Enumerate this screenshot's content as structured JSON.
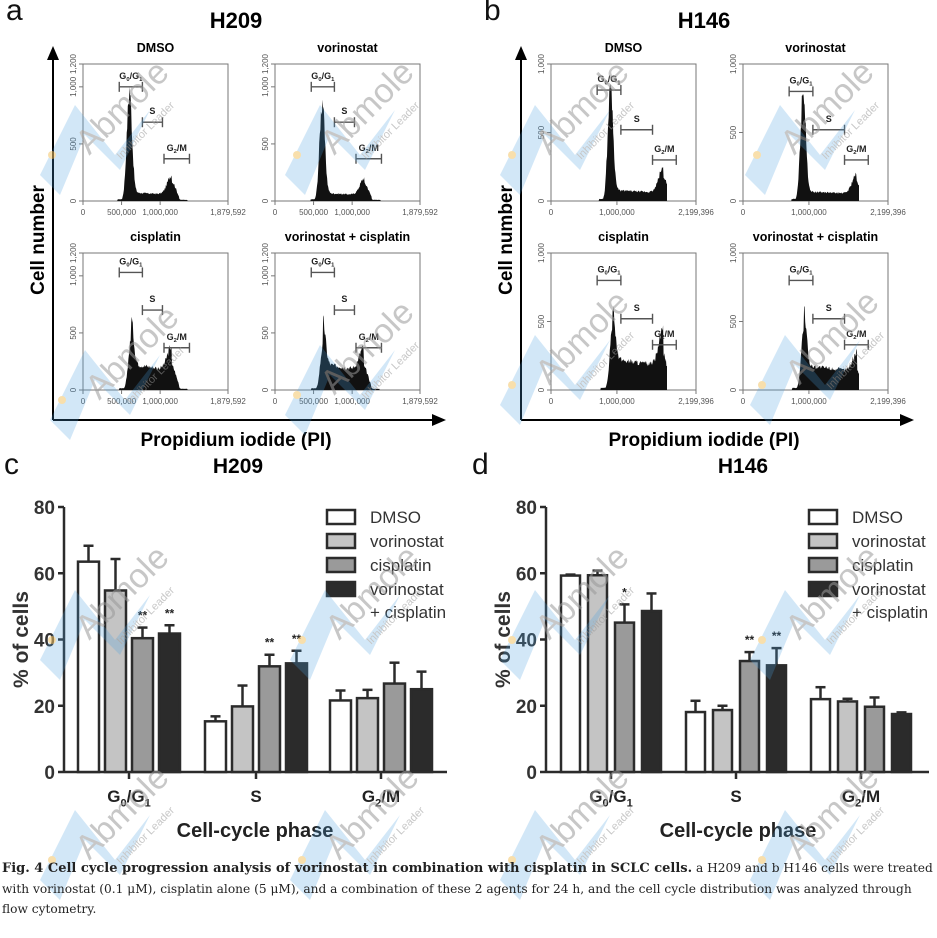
{
  "figure": {
    "panel_letters": [
      "a",
      "b",
      "c",
      "d"
    ],
    "caption": {
      "bold": "Fig. 4 Cell cycle progression analysis of vorinostat in combination with cisplatin in SCLC cells.",
      "text": " a H209 and b H146 cells were treated with vorinostat (0.1 μM), cisplatin alone (5 μM), and a combination of these 2 agents for 24 h, and the cell cycle distribution was analyzed through flow cytometry."
    },
    "watermark": {
      "brand": "Abmole",
      "tagline": "Inhibitor Leader",
      "color": "#9a9a9a",
      "logo_color": "#4a9fe0"
    }
  },
  "chart_data": [
    {
      "id": "a",
      "type": "histogram-grid",
      "title": "H209",
      "ylabel": "Cell number",
      "xlabel": "Propidium iodide (PI)",
      "xlim": [
        0,
        1879592
      ],
      "x_ticks": [
        "0",
        "500,000",
        "1,000,000",
        "1,879,592"
      ],
      "ylim": [
        0,
        1200
      ],
      "y_ticks": [
        "0",
        "500",
        "1,000",
        "1,200"
      ],
      "gate_labels": [
        "G0/G1",
        "S",
        "G2/M"
      ],
      "subplots": [
        {
          "name": "DMSO",
          "peak_g1": 920,
          "shoulder": 75,
          "peak_g2": 170,
          "g1_pos": 600000,
          "g2_pos": 1150000,
          "gates": [
            [
              470000,
              770000,
              1000
            ],
            [
              770000,
              1030000,
              690
            ],
            [
              1050000,
              1380000,
              370
            ]
          ]
        },
        {
          "name": "vorinostat",
          "peak_g1": 840,
          "shoulder": 70,
          "peak_g2": 150,
          "g1_pos": 610000,
          "g2_pos": 1160000,
          "gates": [
            [
              470000,
              770000,
              1000
            ],
            [
              770000,
              1030000,
              690
            ],
            [
              1050000,
              1380000,
              370
            ]
          ]
        },
        {
          "name": "cisplatin",
          "peak_g1": 420,
          "shoulder": 230,
          "peak_g2": 210,
          "g1_pos": 620000,
          "g2_pos": 1150000,
          "gates": [
            [
              470000,
              770000,
              1030
            ],
            [
              770000,
              1030000,
              700
            ],
            [
              1050000,
              1380000,
              370
            ]
          ]
        },
        {
          "name": "vorinostat + cisplatin",
          "peak_g1": 380,
          "shoulder": 230,
          "peak_g2": 200,
          "g1_pos": 620000,
          "g2_pos": 1150000,
          "gates": [
            [
              470000,
              770000,
              1030
            ],
            [
              770000,
              1030000,
              700
            ],
            [
              1050000,
              1380000,
              370
            ]
          ]
        }
      ]
    },
    {
      "id": "b",
      "type": "histogram-grid",
      "title": "H146",
      "ylabel": "Cell number",
      "xlabel": "Propidium iodide (PI)",
      "xlim": [
        0,
        2199396
      ],
      "x_ticks": [
        "0",
        "1,000,000",
        "2,199,396"
      ],
      "ylim": [
        0,
        1000
      ],
      "y_ticks": [
        "0",
        "500",
        "1,000"
      ],
      "gate_labels": [
        "G0/G1",
        "S",
        "G2/M"
      ],
      "subplots": [
        {
          "name": "DMSO",
          "peak_g1": 810,
          "shoulder": 80,
          "peak_g2": 180,
          "g1_pos": 900000,
          "g2_pos": 1700000,
          "gates": [
            [
              700000,
              1060000,
              810
            ],
            [
              1060000,
              1540000,
              520
            ],
            [
              1540000,
              1900000,
              300
            ]
          ]
        },
        {
          "name": "vorinostat",
          "peak_g1": 780,
          "shoulder": 70,
          "peak_g2": 140,
          "g1_pos": 910000,
          "g2_pos": 1720000,
          "gates": [
            [
              700000,
              1060000,
              800
            ],
            [
              1060000,
              1540000,
              520
            ],
            [
              1540000,
              1900000,
              300
            ]
          ]
        },
        {
          "name": "cisplatin",
          "peak_g1": 420,
          "shoulder": 230,
          "peak_g2": 260,
          "g1_pos": 930000,
          "g2_pos": 1700000,
          "gates": [
            [
              700000,
              1060000,
              800
            ],
            [
              1060000,
              1540000,
              520
            ],
            [
              1540000,
              1900000,
              330
            ]
          ]
        },
        {
          "name": "vorinostat + cisplatin",
          "peak_g1": 430,
          "shoulder": 180,
          "peak_g2": 140,
          "g1_pos": 920000,
          "g2_pos": 1730000,
          "gates": [
            [
              700000,
              1060000,
              800
            ],
            [
              1060000,
              1540000,
              520
            ],
            [
              1540000,
              1900000,
              330
            ]
          ]
        }
      ]
    },
    {
      "id": "c",
      "type": "bar",
      "title": "H209",
      "xlabel": "Cell-cycle phase",
      "ylabel": "% of cells",
      "ylim": [
        0,
        80
      ],
      "y_ticks": [
        0,
        20,
        40,
        60,
        80
      ],
      "categories": [
        "G0/G1",
        "S",
        "G2/M"
      ],
      "legend_position": "top-right",
      "series": [
        {
          "name": "DMSO",
          "color": "#ffffff",
          "values": [
            63.5,
            15.3,
            21.6
          ],
          "errors": [
            4.8,
            1.5,
            3.0
          ],
          "sig": [
            "",
            "",
            ""
          ]
        },
        {
          "name": "vorinostat",
          "color": "#c4c4c4",
          "values": [
            54.8,
            19.8,
            22.3
          ],
          "errors": [
            9.5,
            6.3,
            2.5
          ],
          "sig": [
            "",
            "",
            ""
          ]
        },
        {
          "name": "cisplatin",
          "color": "#9a9a9a",
          "values": [
            40.4,
            31.9,
            26.7
          ],
          "errors": [
            3.2,
            3.5,
            6.3
          ],
          "sig": [
            "**",
            "**",
            ""
          ]
        },
        {
          "name": "vorinostat + cisplatin",
          "color": "#2b2b2b",
          "values": [
            41.8,
            32.8,
            25.0
          ],
          "errors": [
            2.5,
            3.8,
            5.3
          ],
          "sig": [
            "**",
            "**",
            ""
          ]
        }
      ]
    },
    {
      "id": "d",
      "type": "bar",
      "title": "H146",
      "xlabel": "Cell-cycle phase",
      "ylabel": "% of cells",
      "ylim": [
        0,
        80
      ],
      "y_ticks": [
        0,
        20,
        40,
        60,
        80
      ],
      "categories": [
        "G0/G1",
        "S",
        "G2/M"
      ],
      "legend_position": "top-right",
      "series": [
        {
          "name": "DMSO",
          "color": "#ffffff",
          "values": [
            59.3,
            18.1,
            22.0
          ],
          "errors": [
            0.3,
            3.4,
            3.6
          ],
          "sig": [
            "",
            "",
            ""
          ]
        },
        {
          "name": "vorinostat",
          "color": "#c4c4c4",
          "values": [
            59.4,
            18.7,
            21.3
          ],
          "errors": [
            1.4,
            1.3,
            0.8
          ],
          "sig": [
            "",
            "",
            ""
          ]
        },
        {
          "name": "cisplatin",
          "color": "#9a9a9a",
          "values": [
            45.1,
            33.5,
            19.7
          ],
          "errors": [
            5.5,
            2.7,
            2.8
          ],
          "sig": [
            "*",
            "**",
            ""
          ]
        },
        {
          "name": "vorinostat + cisplatin",
          "color": "#2b2b2b",
          "values": [
            48.6,
            32.2,
            17.5
          ],
          "errors": [
            5.3,
            5.2,
            0.5
          ],
          "sig": [
            "",
            "**",
            ""
          ]
        }
      ]
    }
  ]
}
